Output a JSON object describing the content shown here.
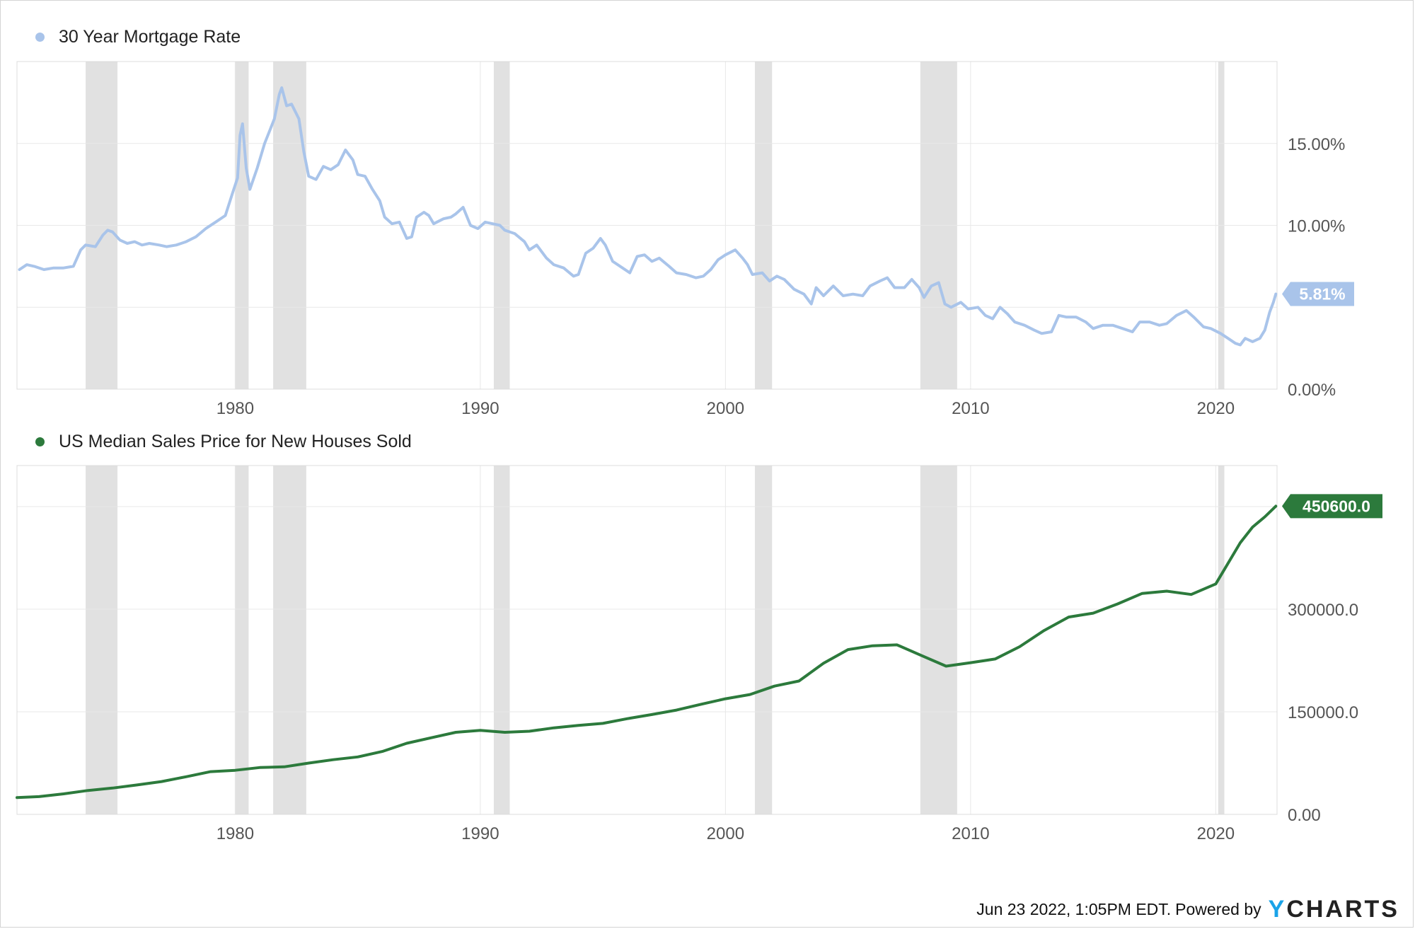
{
  "colors": {
    "mortgage": "#a9c4ea",
    "price": "#2c7a3c",
    "recession": "#e1e1e1",
    "grid": "#e8e8e8",
    "axis_text": "#555555",
    "brand_accent": "#1aa3e8"
  },
  "recessions": [
    [
      1973.9,
      1975.2
    ],
    [
      1980.0,
      1980.55
    ],
    [
      1981.55,
      1982.9
    ],
    [
      1990.55,
      1991.2
    ],
    [
      2001.2,
      2001.9
    ],
    [
      2007.95,
      2009.45
    ],
    [
      2020.1,
      2020.35
    ]
  ],
  "chart_data": [
    {
      "type": "line",
      "legend": "30 Year Mortgage Rate",
      "xlim": [
        1971.1,
        2022.5
      ],
      "x_ticks": [
        "1980",
        "1990",
        "2000",
        "2010",
        "2020"
      ],
      "x_tick_values": [
        1980,
        1990,
        2000,
        2010,
        2020
      ],
      "ylim": [
        0,
        20
      ],
      "y_ticks": [
        "0.00%",
        "10.00%",
        "15.00%"
      ],
      "y_tick_values": [
        0,
        10,
        15
      ],
      "y_gridlines": [
        0,
        5,
        10,
        15
      ],
      "last_value_label": "5.81%",
      "last_value": 5.81,
      "series": [
        {
          "color": "#a9c4ea",
          "points": [
            [
              1971.2,
              7.3
            ],
            [
              1971.5,
              7.6
            ],
            [
              1971.8,
              7.5
            ],
            [
              1972.2,
              7.3
            ],
            [
              1972.6,
              7.4
            ],
            [
              1973.0,
              7.4
            ],
            [
              1973.4,
              7.5
            ],
            [
              1973.7,
              8.5
            ],
            [
              1973.9,
              8.8
            ],
            [
              1974.3,
              8.7
            ],
            [
              1974.6,
              9.4
            ],
            [
              1974.8,
              9.7
            ],
            [
              1975.0,
              9.6
            ],
            [
              1975.3,
              9.1
            ],
            [
              1975.6,
              8.9
            ],
            [
              1975.9,
              9.0
            ],
            [
              1976.2,
              8.8
            ],
            [
              1976.5,
              8.9
            ],
            [
              1976.9,
              8.8
            ],
            [
              1977.2,
              8.7
            ],
            [
              1977.6,
              8.8
            ],
            [
              1978.0,
              9.0
            ],
            [
              1978.4,
              9.3
            ],
            [
              1978.8,
              9.8
            ],
            [
              1979.2,
              10.2
            ],
            [
              1979.6,
              10.6
            ],
            [
              1979.9,
              12.0
            ],
            [
              1980.1,
              12.9
            ],
            [
              1980.2,
              15.5
            ],
            [
              1980.3,
              16.2
            ],
            [
              1980.45,
              13.5
            ],
            [
              1980.6,
              12.2
            ],
            [
              1980.9,
              13.5
            ],
            [
              1981.2,
              15.0
            ],
            [
              1981.6,
              16.5
            ],
            [
              1981.8,
              18.0
            ],
            [
              1981.9,
              18.4
            ],
            [
              1982.1,
              17.3
            ],
            [
              1982.3,
              17.4
            ],
            [
              1982.6,
              16.5
            ],
            [
              1982.8,
              14.5
            ],
            [
              1983.0,
              13.0
            ],
            [
              1983.3,
              12.8
            ],
            [
              1983.6,
              13.6
            ],
            [
              1983.9,
              13.4
            ],
            [
              1984.2,
              13.7
            ],
            [
              1984.5,
              14.6
            ],
            [
              1984.8,
              14.0
            ],
            [
              1985.0,
              13.1
            ],
            [
              1985.3,
              13.0
            ],
            [
              1985.6,
              12.2
            ],
            [
              1985.9,
              11.5
            ],
            [
              1986.1,
              10.5
            ],
            [
              1986.4,
              10.1
            ],
            [
              1986.7,
              10.2
            ],
            [
              1987.0,
              9.2
            ],
            [
              1987.2,
              9.3
            ],
            [
              1987.4,
              10.5
            ],
            [
              1987.7,
              10.8
            ],
            [
              1987.9,
              10.6
            ],
            [
              1988.1,
              10.1
            ],
            [
              1988.5,
              10.4
            ],
            [
              1988.8,
              10.5
            ],
            [
              1989.0,
              10.7
            ],
            [
              1989.3,
              11.1
            ],
            [
              1989.6,
              10.0
            ],
            [
              1989.9,
              9.8
            ],
            [
              1990.2,
              10.2
            ],
            [
              1990.5,
              10.1
            ],
            [
              1990.8,
              10.0
            ],
            [
              1991.0,
              9.7
            ],
            [
              1991.4,
              9.5
            ],
            [
              1991.8,
              9.0
            ],
            [
              1992.0,
              8.5
            ],
            [
              1992.3,
              8.8
            ],
            [
              1992.7,
              8.0
            ],
            [
              1993.0,
              7.6
            ],
            [
              1993.4,
              7.4
            ],
            [
              1993.8,
              6.9
            ],
            [
              1994.0,
              7.0
            ],
            [
              1994.3,
              8.3
            ],
            [
              1994.6,
              8.6
            ],
            [
              1994.9,
              9.2
            ],
            [
              1995.1,
              8.8
            ],
            [
              1995.4,
              7.8
            ],
            [
              1995.8,
              7.4
            ],
            [
              1996.1,
              7.1
            ],
            [
              1996.4,
              8.1
            ],
            [
              1996.7,
              8.2
            ],
            [
              1997.0,
              7.8
            ],
            [
              1997.3,
              8.0
            ],
            [
              1997.7,
              7.5
            ],
            [
              1998.0,
              7.1
            ],
            [
              1998.4,
              7.0
            ],
            [
              1998.8,
              6.8
            ],
            [
              1999.1,
              6.9
            ],
            [
              1999.4,
              7.3
            ],
            [
              1999.7,
              7.9
            ],
            [
              2000.0,
              8.2
            ],
            [
              2000.4,
              8.5
            ],
            [
              2000.7,
              8.0
            ],
            [
              2000.9,
              7.6
            ],
            [
              2001.1,
              7.0
            ],
            [
              2001.5,
              7.1
            ],
            [
              2001.8,
              6.6
            ],
            [
              2002.1,
              6.9
            ],
            [
              2002.4,
              6.7
            ],
            [
              2002.8,
              6.1
            ],
            [
              2003.2,
              5.8
            ],
            [
              2003.5,
              5.2
            ],
            [
              2003.7,
              6.2
            ],
            [
              2004.0,
              5.7
            ],
            [
              2004.4,
              6.3
            ],
            [
              2004.8,
              5.7
            ],
            [
              2005.2,
              5.8
            ],
            [
              2005.6,
              5.7
            ],
            [
              2005.9,
              6.3
            ],
            [
              2006.3,
              6.6
            ],
            [
              2006.6,
              6.8
            ],
            [
              2006.9,
              6.2
            ],
            [
              2007.3,
              6.2
            ],
            [
              2007.6,
              6.7
            ],
            [
              2007.9,
              6.2
            ],
            [
              2008.1,
              5.6
            ],
            [
              2008.4,
              6.3
            ],
            [
              2008.7,
              6.5
            ],
            [
              2008.95,
              5.2
            ],
            [
              2009.2,
              5.0
            ],
            [
              2009.6,
              5.3
            ],
            [
              2009.9,
              4.9
            ],
            [
              2010.3,
              5.0
            ],
            [
              2010.6,
              4.5
            ],
            [
              2010.9,
              4.3
            ],
            [
              2011.2,
              5.0
            ],
            [
              2011.5,
              4.6
            ],
            [
              2011.8,
              4.1
            ],
            [
              2012.2,
              3.9
            ],
            [
              2012.6,
              3.6
            ],
            [
              2012.9,
              3.4
            ],
            [
              2013.3,
              3.5
            ],
            [
              2013.6,
              4.5
            ],
            [
              2013.9,
              4.4
            ],
            [
              2014.3,
              4.4
            ],
            [
              2014.7,
              4.1
            ],
            [
              2015.0,
              3.7
            ],
            [
              2015.4,
              3.9
            ],
            [
              2015.8,
              3.9
            ],
            [
              2016.2,
              3.7
            ],
            [
              2016.6,
              3.5
            ],
            [
              2016.9,
              4.1
            ],
            [
              2017.3,
              4.1
            ],
            [
              2017.7,
              3.9
            ],
            [
              2018.0,
              4.0
            ],
            [
              2018.4,
              4.5
            ],
            [
              2018.8,
              4.8
            ],
            [
              2019.1,
              4.4
            ],
            [
              2019.5,
              3.8
            ],
            [
              2019.8,
              3.7
            ],
            [
              2020.2,
              3.4
            ],
            [
              2020.5,
              3.1
            ],
            [
              2020.8,
              2.8
            ],
            [
              2021.0,
              2.7
            ],
            [
              2021.2,
              3.1
            ],
            [
              2021.5,
              2.9
            ],
            [
              2021.8,
              3.1
            ],
            [
              2022.0,
              3.6
            ],
            [
              2022.2,
              4.7
            ],
            [
              2022.35,
              5.3
            ],
            [
              2022.45,
              5.81
            ]
          ]
        }
      ]
    },
    {
      "type": "line",
      "legend": "US Median Sales Price for New Houses Sold",
      "xlim": [
        1971.1,
        2022.5
      ],
      "x_ticks": [
        "1980",
        "1990",
        "2000",
        "2010",
        "2020"
      ],
      "x_tick_values": [
        1980,
        1990,
        2000,
        2010,
        2020
      ],
      "ylim": [
        0,
        510000
      ],
      "y_ticks": [
        "0.00",
        "150000.0",
        "300000.0",
        "450000.0"
      ],
      "y_tick_values": [
        0,
        150000,
        300000,
        450000
      ],
      "last_value_label": "450600.0",
      "last_value": 450600,
      "series": [
        {
          "color": "#2c7a3c",
          "points": [
            [
              1971.1,
              24500
            ],
            [
              1972.0,
              26000
            ],
            [
              1973.0,
              30000
            ],
            [
              1974.0,
              35000
            ],
            [
              1975.0,
              38500
            ],
            [
              1976.0,
              43000
            ],
            [
              1977.0,
              48000
            ],
            [
              1978.0,
              55000
            ],
            [
              1979.0,
              62500
            ],
            [
              1980.0,
              64500
            ],
            [
              1981.0,
              68500
            ],
            [
              1982.0,
              69500
            ],
            [
              1983.0,
              75000
            ],
            [
              1984.0,
              80000
            ],
            [
              1985.0,
              84000
            ],
            [
              1986.0,
              92000
            ],
            [
              1987.0,
              104000
            ],
            [
              1988.0,
              112000
            ],
            [
              1989.0,
              120000
            ],
            [
              1990.0,
              122900
            ],
            [
              1991.0,
              120000
            ],
            [
              1992.0,
              121500
            ],
            [
              1993.0,
              126500
            ],
            [
              1994.0,
              130000
            ],
            [
              1995.0,
              133000
            ],
            [
              1996.0,
              140000
            ],
            [
              1997.0,
              146000
            ],
            [
              1998.0,
              152500
            ],
            [
              1999.0,
              161000
            ],
            [
              2000.0,
              169000
            ],
            [
              2001.0,
              175200
            ],
            [
              2002.0,
              187600
            ],
            [
              2003.0,
              195000
            ],
            [
              2004.0,
              221000
            ],
            [
              2005.0,
              240900
            ],
            [
              2006.0,
              246500
            ],
            [
              2007.0,
              247900
            ],
            [
              2008.0,
              232100
            ],
            [
              2009.0,
              216700
            ],
            [
              2010.0,
              221800
            ],
            [
              2011.0,
              227200
            ],
            [
              2012.0,
              245200
            ],
            [
              2013.0,
              268900
            ],
            [
              2014.0,
              288500
            ],
            [
              2015.0,
              294200
            ],
            [
              2016.0,
              307800
            ],
            [
              2017.0,
              323100
            ],
            [
              2018.0,
              326400
            ],
            [
              2019.0,
              321500
            ],
            [
              2020.0,
              336900
            ],
            [
              2021.0,
              397100
            ],
            [
              2021.5,
              420000
            ],
            [
              2022.0,
              435000
            ],
            [
              2022.45,
              450600
            ]
          ]
        }
      ]
    }
  ],
  "footer": {
    "timestamp_text": "Jun 23 2022, 1:05PM EDT.",
    "powered_by": "Powered by",
    "brand_y": "Y",
    "brand_rest": "CHARTS"
  }
}
